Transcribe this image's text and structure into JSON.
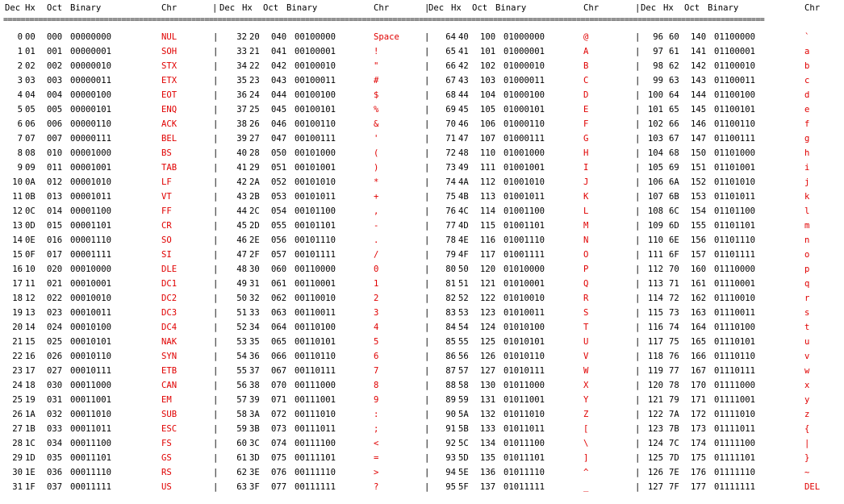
{
  "headers": [
    "Dec",
    "Hx",
    "Oct",
    "Binary",
    "Chr"
  ],
  "rule": "==============================================================================================================================================================================",
  "separator": "|",
  "rows": [
    [
      [
        "0",
        "00",
        "000",
        "00000000",
        "NUL"
      ],
      [
        "32",
        "20",
        "040",
        "00100000",
        "Space"
      ],
      [
        "64",
        "40",
        "100",
        "01000000",
        "@"
      ],
      [
        "96",
        "60",
        "140",
        "01100000",
        "`"
      ]
    ],
    [
      [
        "1",
        "01",
        "001",
        "00000001",
        "SOH"
      ],
      [
        "33",
        "21",
        "041",
        "00100001",
        "!"
      ],
      [
        "65",
        "41",
        "101",
        "01000001",
        "A"
      ],
      [
        "97",
        "61",
        "141",
        "01100001",
        "a"
      ]
    ],
    [
      [
        "2",
        "02",
        "002",
        "00000010",
        "STX"
      ],
      [
        "34",
        "22",
        "042",
        "00100010",
        "\""
      ],
      [
        "66",
        "42",
        "102",
        "01000010",
        "B"
      ],
      [
        "98",
        "62",
        "142",
        "01100010",
        "b"
      ]
    ],
    [
      [
        "3",
        "03",
        "003",
        "00000011",
        "ETX"
      ],
      [
        "35",
        "23",
        "043",
        "00100011",
        "#"
      ],
      [
        "67",
        "43",
        "103",
        "01000011",
        "C"
      ],
      [
        "99",
        "63",
        "143",
        "01100011",
        "c"
      ]
    ],
    [
      [
        "4",
        "04",
        "004",
        "00000100",
        "EOT"
      ],
      [
        "36",
        "24",
        "044",
        "00100100",
        "$"
      ],
      [
        "68",
        "44",
        "104",
        "01000100",
        "D"
      ],
      [
        "100",
        "64",
        "144",
        "01100100",
        "d"
      ]
    ],
    [
      [
        "5",
        "05",
        "005",
        "00000101",
        "ENQ"
      ],
      [
        "37",
        "25",
        "045",
        "00100101",
        "%"
      ],
      [
        "69",
        "45",
        "105",
        "01000101",
        "E"
      ],
      [
        "101",
        "65",
        "145",
        "01100101",
        "e"
      ]
    ],
    [
      [
        "6",
        "06",
        "006",
        "00000110",
        "ACK"
      ],
      [
        "38",
        "26",
        "046",
        "00100110",
        "&"
      ],
      [
        "70",
        "46",
        "106",
        "01000110",
        "F"
      ],
      [
        "102",
        "66",
        "146",
        "01100110",
        "f"
      ]
    ],
    [
      [
        "7",
        "07",
        "007",
        "00000111",
        "BEL"
      ],
      [
        "39",
        "27",
        "047",
        "00100111",
        "'"
      ],
      [
        "71",
        "47",
        "107",
        "01000111",
        "G"
      ],
      [
        "103",
        "67",
        "147",
        "01100111",
        "g"
      ]
    ],
    [
      [
        "8",
        "08",
        "010",
        "00001000",
        "BS"
      ],
      [
        "40",
        "28",
        "050",
        "00101000",
        "("
      ],
      [
        "72",
        "48",
        "110",
        "01001000",
        "H"
      ],
      [
        "104",
        "68",
        "150",
        "01101000",
        "h"
      ]
    ],
    [
      [
        "9",
        "09",
        "011",
        "00001001",
        "TAB"
      ],
      [
        "41",
        "29",
        "051",
        "00101001",
        ")"
      ],
      [
        "73",
        "49",
        "111",
        "01001001",
        "I"
      ],
      [
        "105",
        "69",
        "151",
        "01101001",
        "i"
      ]
    ],
    [
      [
        "10",
        "0A",
        "012",
        "00001010",
        "LF"
      ],
      [
        "42",
        "2A",
        "052",
        "00101010",
        "*"
      ],
      [
        "74",
        "4A",
        "112",
        "01001010",
        "J"
      ],
      [
        "106",
        "6A",
        "152",
        "01101010",
        "j"
      ]
    ],
    [
      [
        "11",
        "0B",
        "013",
        "00001011",
        "VT"
      ],
      [
        "43",
        "2B",
        "053",
        "00101011",
        "+"
      ],
      [
        "75",
        "4B",
        "113",
        "01001011",
        "K"
      ],
      [
        "107",
        "6B",
        "153",
        "01101011",
        "k"
      ]
    ],
    [
      [
        "12",
        "0C",
        "014",
        "00001100",
        "FF"
      ],
      [
        "44",
        "2C",
        "054",
        "00101100",
        ","
      ],
      [
        "76",
        "4C",
        "114",
        "01001100",
        "L"
      ],
      [
        "108",
        "6C",
        "154",
        "01101100",
        "l"
      ]
    ],
    [
      [
        "13",
        "0D",
        "015",
        "00001101",
        "CR"
      ],
      [
        "45",
        "2D",
        "055",
        "00101101",
        "-"
      ],
      [
        "77",
        "4D",
        "115",
        "01001101",
        "M"
      ],
      [
        "109",
        "6D",
        "155",
        "01101101",
        "m"
      ]
    ],
    [
      [
        "14",
        "0E",
        "016",
        "00001110",
        "SO"
      ],
      [
        "46",
        "2E",
        "056",
        "00101110",
        "."
      ],
      [
        "78",
        "4E",
        "116",
        "01001110",
        "N"
      ],
      [
        "110",
        "6E",
        "156",
        "01101110",
        "n"
      ]
    ],
    [
      [
        "15",
        "0F",
        "017",
        "00001111",
        "SI"
      ],
      [
        "47",
        "2F",
        "057",
        "00101111",
        "/"
      ],
      [
        "79",
        "4F",
        "117",
        "01001111",
        "O"
      ],
      [
        "111",
        "6F",
        "157",
        "01101111",
        "o"
      ]
    ],
    [
      [
        "16",
        "10",
        "020",
        "00010000",
        "DLE"
      ],
      [
        "48",
        "30",
        "060",
        "00110000",
        "0"
      ],
      [
        "80",
        "50",
        "120",
        "01010000",
        "P"
      ],
      [
        "112",
        "70",
        "160",
        "01110000",
        "p"
      ]
    ],
    [
      [
        "17",
        "11",
        "021",
        "00010001",
        "DC1"
      ],
      [
        "49",
        "31",
        "061",
        "00110001",
        "1"
      ],
      [
        "81",
        "51",
        "121",
        "01010001",
        "Q"
      ],
      [
        "113",
        "71",
        "161",
        "01110001",
        "q"
      ]
    ],
    [
      [
        "18",
        "12",
        "022",
        "00010010",
        "DC2"
      ],
      [
        "50",
        "32",
        "062",
        "00110010",
        "2"
      ],
      [
        "82",
        "52",
        "122",
        "01010010",
        "R"
      ],
      [
        "114",
        "72",
        "162",
        "01110010",
        "r"
      ]
    ],
    [
      [
        "19",
        "13",
        "023",
        "00010011",
        "DC3"
      ],
      [
        "51",
        "33",
        "063",
        "00110011",
        "3"
      ],
      [
        "83",
        "53",
        "123",
        "01010011",
        "S"
      ],
      [
        "115",
        "73",
        "163",
        "01110011",
        "s"
      ]
    ],
    [
      [
        "20",
        "14",
        "024",
        "00010100",
        "DC4"
      ],
      [
        "52",
        "34",
        "064",
        "00110100",
        "4"
      ],
      [
        "84",
        "54",
        "124",
        "01010100",
        "T"
      ],
      [
        "116",
        "74",
        "164",
        "01110100",
        "t"
      ]
    ],
    [
      [
        "21",
        "15",
        "025",
        "00010101",
        "NAK"
      ],
      [
        "53",
        "35",
        "065",
        "00110101",
        "5"
      ],
      [
        "85",
        "55",
        "125",
        "01010101",
        "U"
      ],
      [
        "117",
        "75",
        "165",
        "01110101",
        "u"
      ]
    ],
    [
      [
        "22",
        "16",
        "026",
        "00010110",
        "SYN"
      ],
      [
        "54",
        "36",
        "066",
        "00110110",
        "6"
      ],
      [
        "86",
        "56",
        "126",
        "01010110",
        "V"
      ],
      [
        "118",
        "76",
        "166",
        "01110110",
        "v"
      ]
    ],
    [
      [
        "23",
        "17",
        "027",
        "00010111",
        "ETB"
      ],
      [
        "55",
        "37",
        "067",
        "00110111",
        "7"
      ],
      [
        "87",
        "57",
        "127",
        "01010111",
        "W"
      ],
      [
        "119",
        "77",
        "167",
        "01110111",
        "w"
      ]
    ],
    [
      [
        "24",
        "18",
        "030",
        "00011000",
        "CAN"
      ],
      [
        "56",
        "38",
        "070",
        "00111000",
        "8"
      ],
      [
        "88",
        "58",
        "130",
        "01011000",
        "X"
      ],
      [
        "120",
        "78",
        "170",
        "01111000",
        "x"
      ]
    ],
    [
      [
        "25",
        "19",
        "031",
        "00011001",
        "EM"
      ],
      [
        "57",
        "39",
        "071",
        "00111001",
        "9"
      ],
      [
        "89",
        "59",
        "131",
        "01011001",
        "Y"
      ],
      [
        "121",
        "79",
        "171",
        "01111001",
        "y"
      ]
    ],
    [
      [
        "26",
        "1A",
        "032",
        "00011010",
        "SUB"
      ],
      [
        "58",
        "3A",
        "072",
        "00111010",
        ":"
      ],
      [
        "90",
        "5A",
        "132",
        "01011010",
        "Z"
      ],
      [
        "122",
        "7A",
        "172",
        "01111010",
        "z"
      ]
    ],
    [
      [
        "27",
        "1B",
        "033",
        "00011011",
        "ESC"
      ],
      [
        "59",
        "3B",
        "073",
        "00111011",
        ";"
      ],
      [
        "91",
        "5B",
        "133",
        "01011011",
        "["
      ],
      [
        "123",
        "7B",
        "173",
        "01111011",
        "{"
      ]
    ],
    [
      [
        "28",
        "1C",
        "034",
        "00011100",
        "FS"
      ],
      [
        "60",
        "3C",
        "074",
        "00111100",
        "<"
      ],
      [
        "92",
        "5C",
        "134",
        "01011100",
        "\\"
      ],
      [
        "124",
        "7C",
        "174",
        "01111100",
        "|"
      ]
    ],
    [
      [
        "29",
        "1D",
        "035",
        "00011101",
        "GS"
      ],
      [
        "61",
        "3D",
        "075",
        "00111101",
        "="
      ],
      [
        "93",
        "5D",
        "135",
        "01011101",
        "]"
      ],
      [
        "125",
        "7D",
        "175",
        "01111101",
        "}"
      ]
    ],
    [
      [
        "30",
        "1E",
        "036",
        "00011110",
        "RS"
      ],
      [
        "62",
        "3E",
        "076",
        "00111110",
        ">"
      ],
      [
        "94",
        "5E",
        "136",
        "01011110",
        "^"
      ],
      [
        "126",
        "7E",
        "176",
        "01111110",
        "~"
      ]
    ],
    [
      [
        "31",
        "1F",
        "037",
        "00011111",
        "US"
      ],
      [
        "63",
        "3F",
        "077",
        "00111111",
        "?"
      ],
      [
        "95",
        "5F",
        "137",
        "01011111",
        "_"
      ],
      [
        "127",
        "7F",
        "177",
        "01111111",
        "DEL"
      ]
    ]
  ],
  "colors": {
    "text": "#000000",
    "char": "#e00000",
    "background": "#ffffff"
  }
}
